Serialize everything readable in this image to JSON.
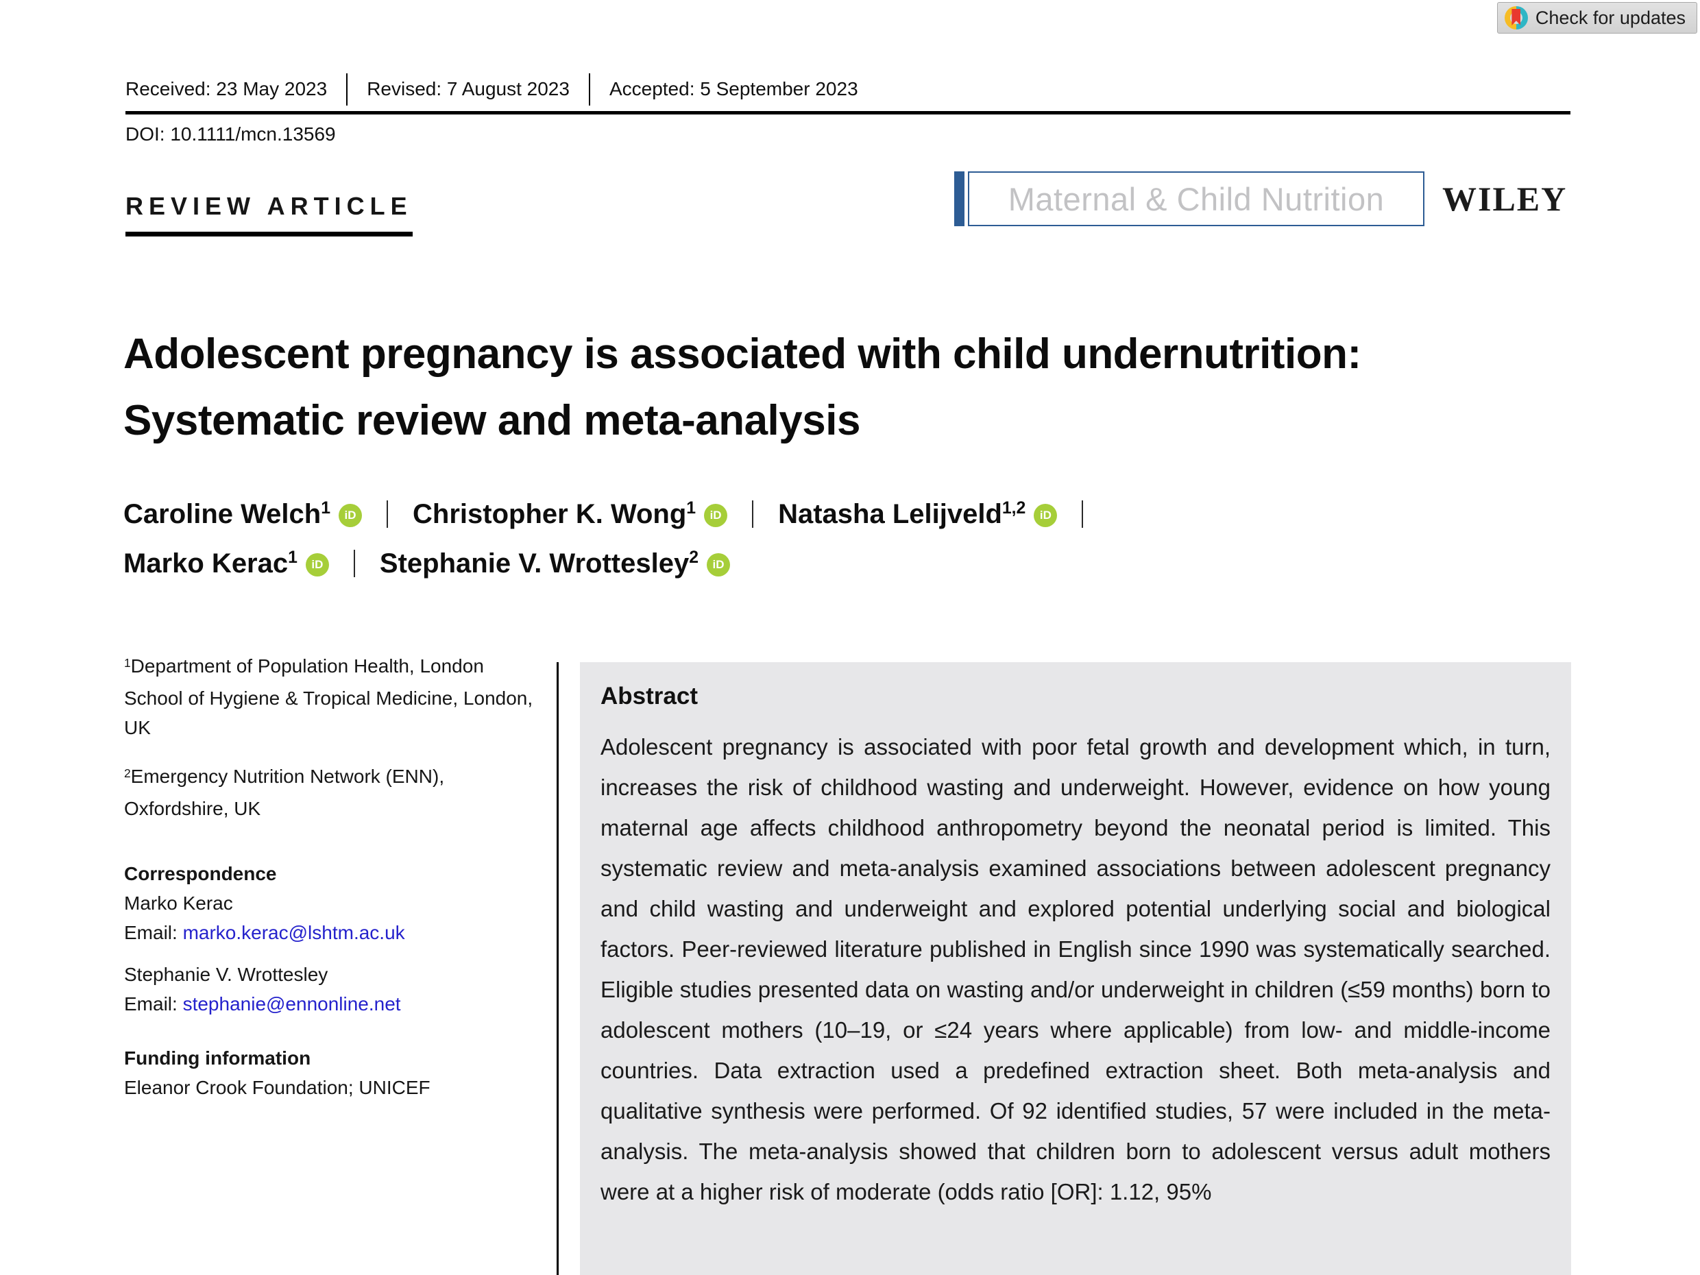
{
  "badge": {
    "label": "Check for updates"
  },
  "header": {
    "received": "Received: 23 May 2023",
    "revised": "Revised: 7 August 2023",
    "accepted": "Accepted: 5 September 2023",
    "doi": "DOI: 10.1111/mcn.13569",
    "article_type": "REVIEW ARTICLE"
  },
  "journal": {
    "name": "Maternal & Child Nutrition",
    "publisher": "WILEY"
  },
  "title": {
    "line1": "Adolescent pregnancy is associated with child undernutrition:",
    "line2": "Systematic review and meta-analysis"
  },
  "orcid_icon_text": "iD",
  "authors": [
    {
      "name": "Caroline Welch",
      "sup": "1"
    },
    {
      "name": "Christopher K. Wong",
      "sup": "1"
    },
    {
      "name": "Natasha Lelijveld",
      "sup": "1,2"
    },
    {
      "name": "Marko Kerac",
      "sup": "1"
    },
    {
      "name": "Stephanie V. Wrottesley",
      "sup": "2"
    }
  ],
  "affiliations": [
    {
      "sup": "1",
      "text": "Department of Population Health, London School of Hygiene & Tropical Medicine, London, UK"
    },
    {
      "sup": "2",
      "text": "Emergency Nutrition Network (ENN), Oxfordshire, UK"
    }
  ],
  "correspondence": {
    "heading": "Correspondence",
    "contacts": [
      {
        "name": "Marko Kerac",
        "email_label": "Email: ",
        "email": "marko.kerac@lshtm.ac.uk"
      },
      {
        "name": "Stephanie V. Wrottesley",
        "email_label": "Email: ",
        "email": "stephanie@ennonline.net"
      }
    ]
  },
  "funding": {
    "heading": "Funding information",
    "text": "Eleanor Crook Foundation; UNICEF"
  },
  "abstract": {
    "heading": "Abstract",
    "body": "Adolescent pregnancy is associated with poor fetal growth and development which, in turn, increases the risk of childhood wasting and underweight. However, evidence on how young maternal age affects childhood anthropometry beyond the neonatal period is limited. This systematic review and meta-analysis examined associations between adolescent pregnancy and child wasting and underweight and explored potential underlying social and biological factors. Peer-reviewed literature published in English since 1990 was systematically searched. Eligible studies presented data on wasting and/or underweight in children (≤59 months) born to adolescent mothers (10–19, or ≤24 years where applicable) from low- and middle-income countries. Data extraction used a predefined extraction sheet. Both meta-analysis and qualitative synthesis were performed. Of 92 identified studies, 57 were included in the meta-analysis. The meta-analysis showed that children born to adolescent versus adult mothers were at a higher risk of moderate (odds ratio [OR]: 1.12, 95%"
  },
  "colors": {
    "journal_blue": "#2d5c94",
    "orcid_green": "#a6ce39",
    "link_blue": "#2522cc",
    "abstract_bg": "#e7e7e9",
    "crossmark_teal": "#2fb6c5",
    "crossmark_yellow": "#f6bc25",
    "crossmark_red": "#e8392f"
  }
}
